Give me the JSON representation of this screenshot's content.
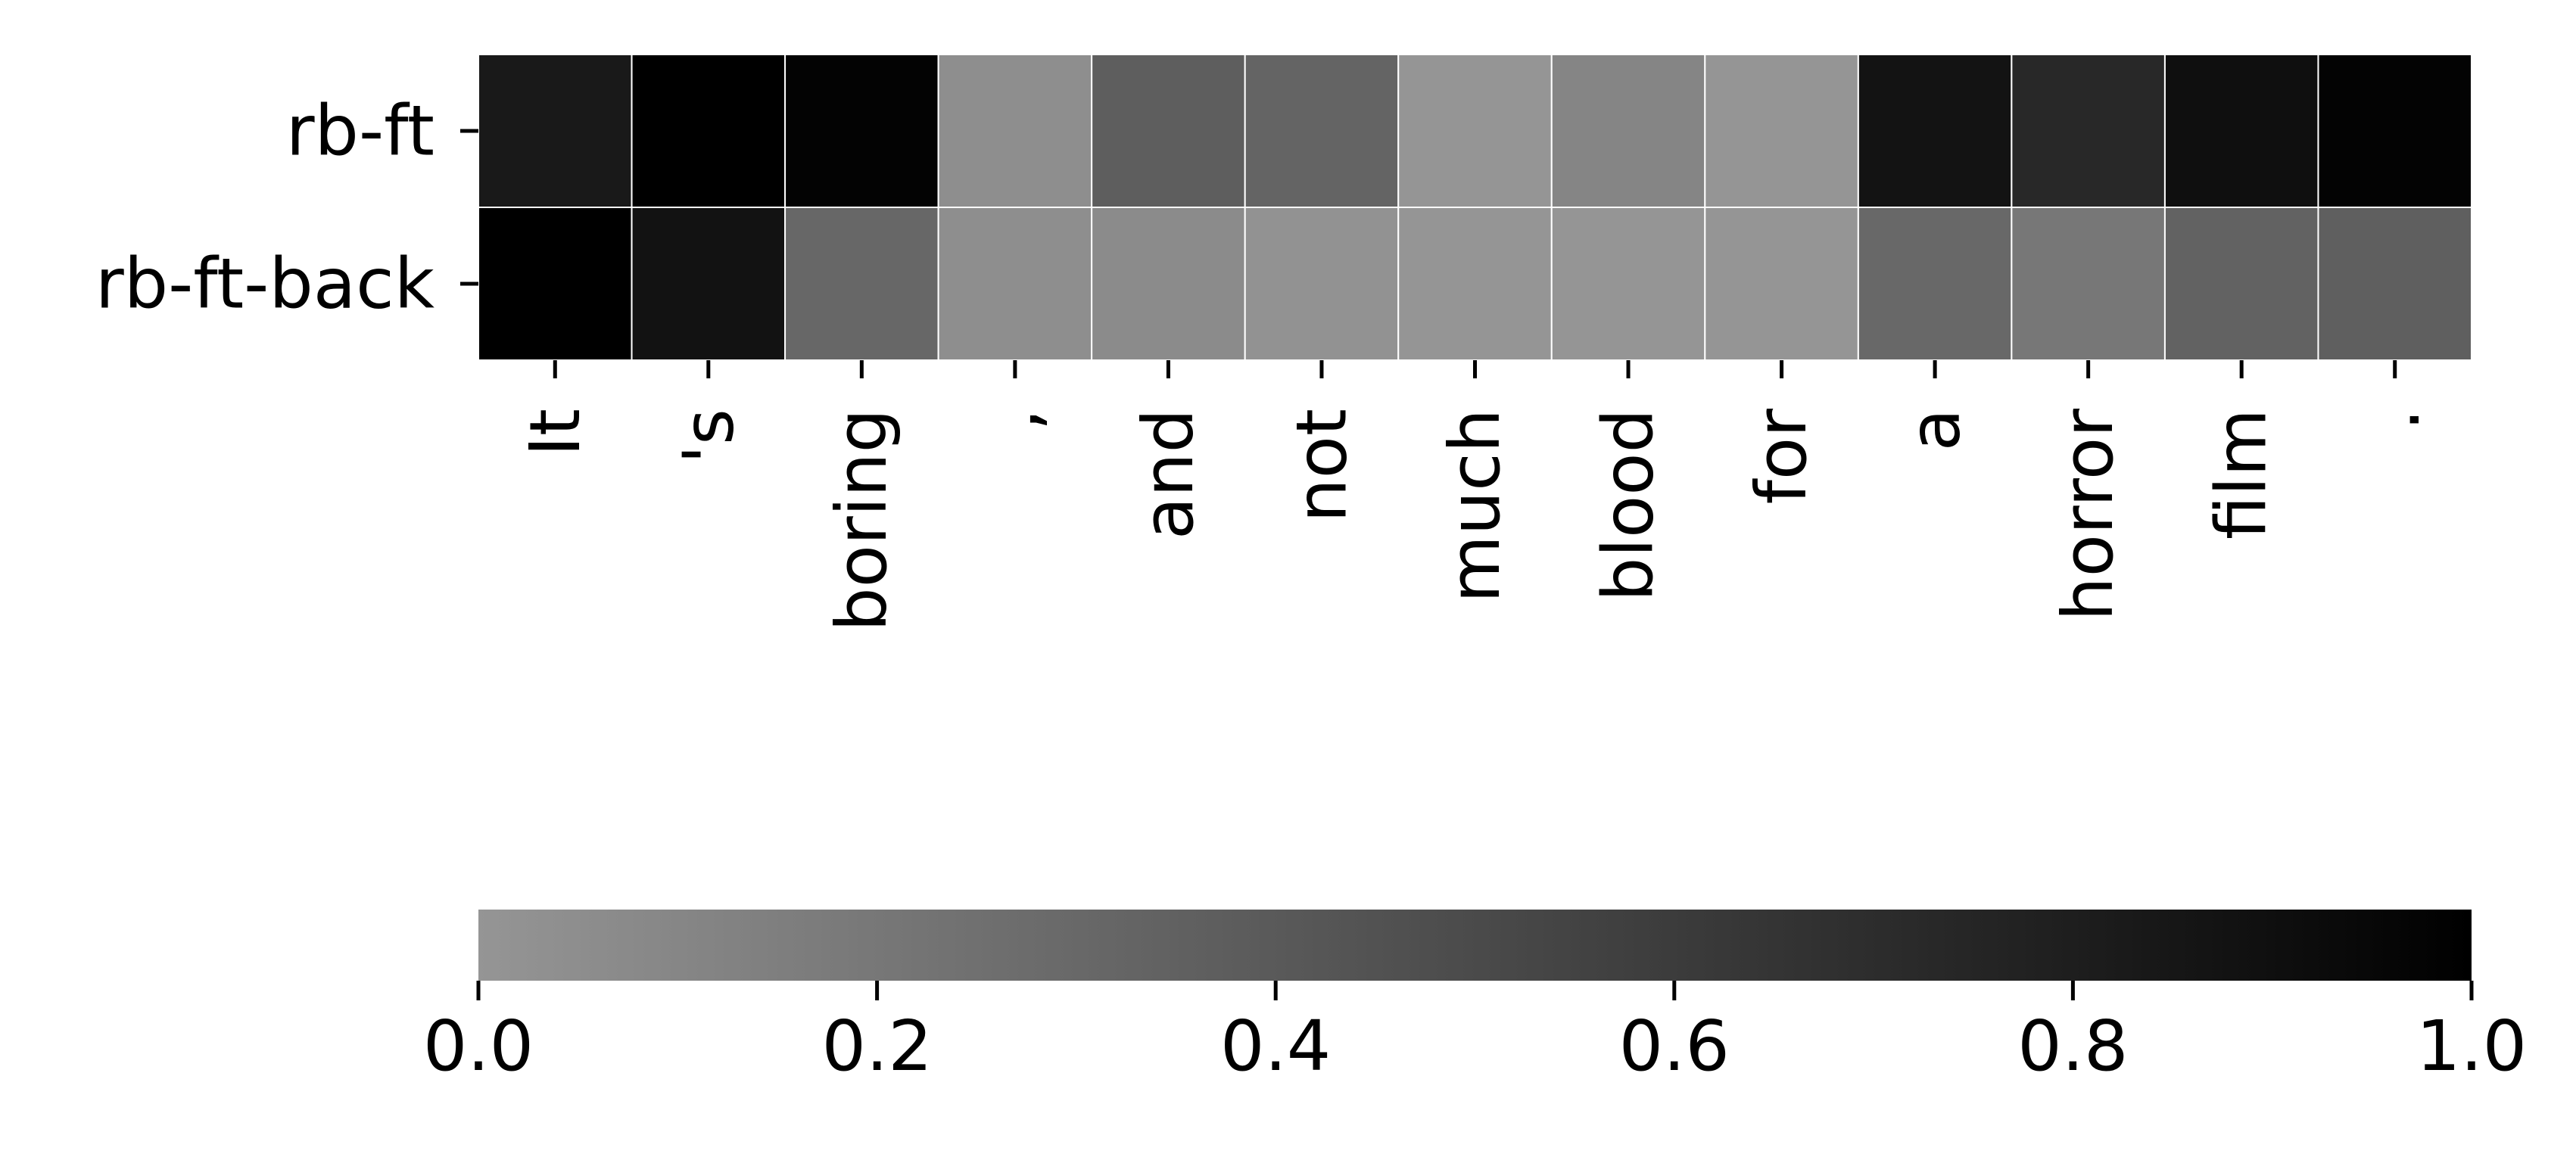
{
  "chart_data": {
    "type": "heatmap",
    "title": "",
    "xlabel": "",
    "ylabel": "",
    "rows": [
      "rb-ft",
      "rb-ft-back"
    ],
    "columns": [
      "It",
      "'s",
      "boring",
      ",",
      "and",
      "not",
      "much",
      "blood",
      "for",
      "a",
      "horror",
      "film",
      "."
    ],
    "values": [
      [
        0.83,
        1.0,
        0.98,
        0.05,
        0.37,
        0.33,
        0.0,
        0.11,
        0.0,
        0.87,
        0.73,
        0.9,
        0.98
      ],
      [
        1.0,
        0.88,
        0.31,
        0.05,
        0.07,
        0.02,
        0.0,
        0.0,
        0.0,
        0.3,
        0.2,
        0.34,
        0.36
      ]
    ],
    "colorbar": {
      "range": [
        0,
        1
      ],
      "ticks": [
        "0.0",
        "0.2",
        "0.4",
        "0.6",
        "0.8",
        "1.0"
      ],
      "orientation": "horizontal",
      "colors": [
        "#959595",
        "#000000"
      ]
    }
  }
}
